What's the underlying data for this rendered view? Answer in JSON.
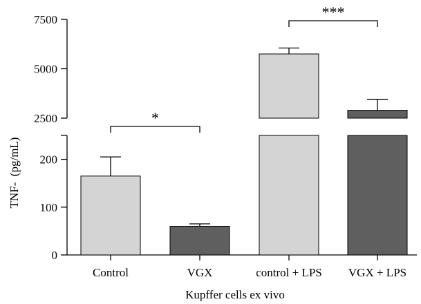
{
  "chart_data": {
    "type": "bar",
    "xlabel": "Kupffer cells ex vivo",
    "ylabel": "TNF-  (pg/mL)",
    "categories": [
      "Control",
      "VGX",
      "control + LPS",
      "VGX + LPS"
    ],
    "series": [
      {
        "values": [
          165,
          60,
          5750,
          2900
        ],
        "errors": [
          40,
          5,
          300,
          550
        ]
      }
    ],
    "bar_colors": [
      "#d4d4d4",
      "#5f5f5f",
      "#d4d4d4",
      "#5f5f5f"
    ],
    "y_axis_broken": true,
    "ylim_lower": [
      0,
      250
    ],
    "ylim_upper": [
      2500,
      7500
    ],
    "yticks_lower": [
      0,
      100,
      200
    ],
    "yticks_upper": [
      2500,
      5000,
      7500
    ],
    "annotations": [
      {
        "between": [
          "Control",
          "VGX"
        ],
        "label": "*"
      },
      {
        "between": [
          "control + LPS",
          "VGX + LPS"
        ],
        "label": "***"
      }
    ],
    "grid": false
  }
}
